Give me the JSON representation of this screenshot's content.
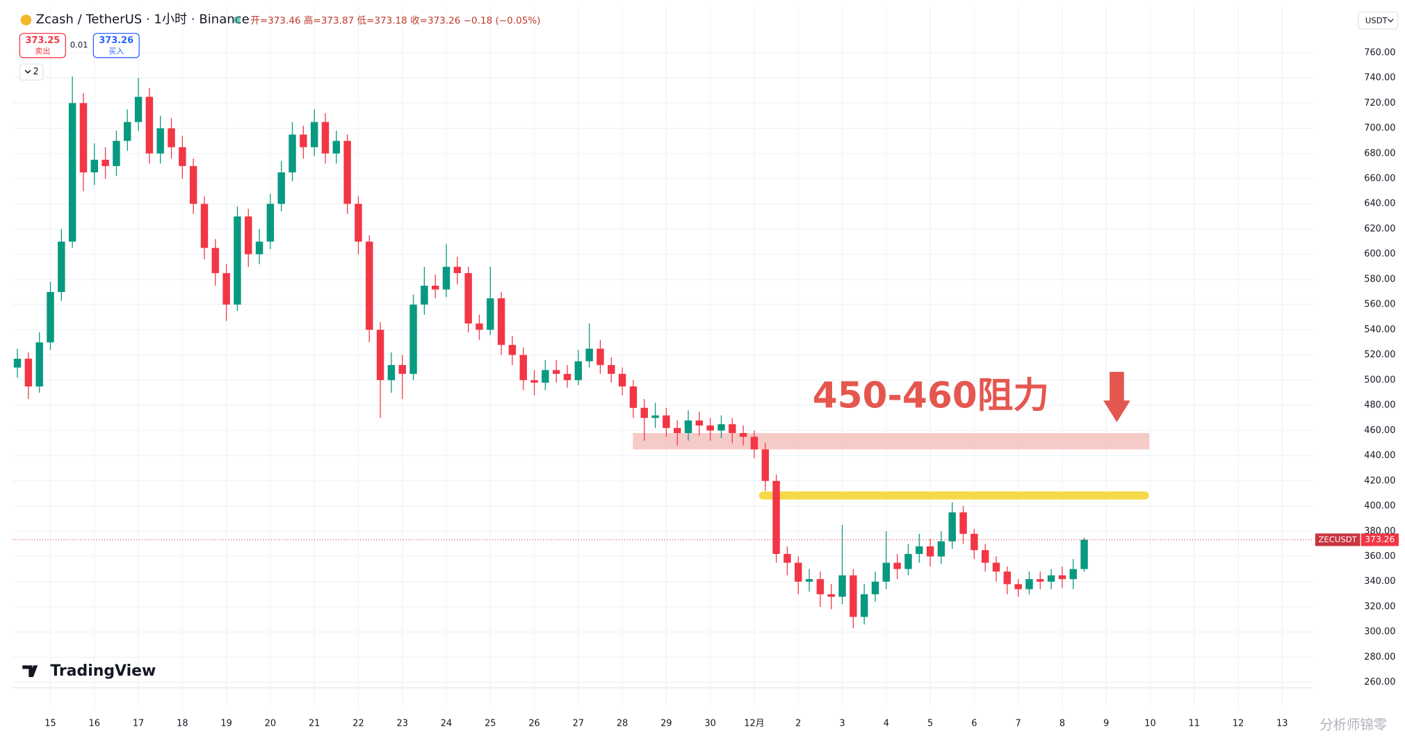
{
  "chart_data": {
    "type": "candlestick",
    "title": "Zcash / TetherUS · 1小时 · Binance",
    "ohlc_legend": "开=373.46 高=373.87 低=373.18 收=373.26 −0.18 (−0.05%)",
    "currency": "USDT",
    "symbol_label": "ZECUSDT",
    "up_color": "#089981",
    "down_color": "#f23645",
    "grid": true,
    "x": [
      14.25,
      14.5,
      14.75,
      15,
      15.25,
      15.5,
      15.75,
      16,
      16.25,
      16.5,
      16.75,
      17,
      17.25,
      17.5,
      17.75,
      18,
      18.25,
      18.5,
      18.75,
      19,
      19.25,
      19.5,
      19.75,
      20,
      20.25,
      20.5,
      20.75,
      21,
      21.25,
      21.5,
      21.75,
      22,
      22.25,
      22.5,
      22.75,
      23,
      23.25,
      23.5,
      23.75,
      24,
      24.25,
      24.5,
      24.75,
      25,
      25.25,
      25.5,
      25.75,
      26,
      26.25,
      26.5,
      26.75,
      27,
      27.25,
      27.5,
      27.75,
      28,
      28.25,
      28.5,
      28.75,
      29,
      29.25,
      29.5,
      29.75,
      30,
      30.25,
      30.5,
      30.75,
      31,
      31.25,
      31.5,
      31.75,
      32,
      32.25,
      32.5,
      32.75,
      33,
      33.25,
      33.5,
      33.75,
      34,
      34.25,
      34.5,
      34.75,
      35,
      35.25,
      35.5,
      35.75,
      36,
      36.25,
      36.5,
      36.75,
      37,
      37.25,
      37.5,
      37.75,
      38,
      38.25,
      38.5
    ],
    "open": [
      510,
      517,
      495,
      530,
      570,
      610,
      720,
      665,
      675,
      670,
      690,
      705,
      725,
      680,
      700,
      685,
      670,
      640,
      605,
      585,
      560,
      630,
      600,
      610,
      640,
      665,
      695,
      685,
      705,
      680,
      690,
      640,
      610,
      540,
      500,
      512,
      505,
      560,
      575,
      572,
      590,
      585,
      545,
      540,
      565,
      528,
      520,
      500,
      498,
      508,
      505,
      500,
      515,
      525,
      512,
      505,
      495,
      478,
      470,
      472,
      462,
      458,
      468,
      464,
      460,
      465,
      458,
      455,
      445,
      420,
      362,
      355,
      340,
      342,
      330,
      328,
      345,
      312,
      330,
      340,
      355,
      350,
      362,
      368,
      360,
      372,
      395,
      378,
      365,
      355,
      348,
      338,
      334,
      342,
      340,
      345,
      342,
      350
    ],
    "high": [
      525,
      522,
      538,
      578,
      620,
      741,
      728,
      688,
      685,
      698,
      715,
      740,
      732,
      710,
      708,
      694,
      676,
      646,
      612,
      592,
      638,
      636,
      620,
      648,
      674,
      705,
      702,
      715,
      712,
      698,
      695,
      646,
      615,
      546,
      522,
      520,
      568,
      590,
      584,
      608,
      598,
      590,
      552,
      590,
      570,
      535,
      526,
      508,
      516,
      516,
      512,
      524,
      545,
      532,
      518,
      510,
      500,
      485,
      482,
      478,
      468,
      476,
      475,
      470,
      472,
      470,
      464,
      460,
      450,
      425,
      368,
      360,
      350,
      348,
      338,
      385,
      350,
      338,
      348,
      380,
      362,
      370,
      378,
      374,
      380,
      403,
      400,
      382,
      370,
      360,
      352,
      342,
      348,
      348,
      350,
      352,
      358,
      375
    ],
    "low": [
      502,
      485,
      490,
      524,
      563,
      605,
      650,
      655,
      660,
      662,
      682,
      698,
      672,
      672,
      676,
      660,
      632,
      596,
      575,
      547,
      555,
      590,
      592,
      604,
      634,
      658,
      676,
      678,
      672,
      672,
      632,
      600,
      530,
      470,
      490,
      485,
      500,
      552,
      565,
      566,
      576,
      538,
      532,
      536,
      520,
      512,
      492,
      488,
      492,
      498,
      494,
      496,
      510,
      505,
      498,
      488,
      470,
      452,
      462,
      455,
      448,
      452,
      456,
      452,
      454,
      450,
      448,
      438,
      412,
      355,
      345,
      330,
      332,
      320,
      318,
      322,
      303,
      306,
      324,
      334,
      342,
      345,
      355,
      352,
      354,
      366,
      370,
      358,
      348,
      340,
      330,
      328,
      330,
      334,
      334,
      335,
      334,
      348
    ],
    "close": [
      517,
      495,
      530,
      570,
      610,
      720,
      665,
      675,
      670,
      690,
      705,
      725,
      680,
      700,
      685,
      670,
      640,
      605,
      585,
      560,
      630,
      600,
      610,
      640,
      665,
      695,
      685,
      705,
      680,
      690,
      640,
      610,
      540,
      500,
      512,
      505,
      560,
      575,
      572,
      590,
      585,
      545,
      540,
      565,
      528,
      520,
      500,
      498,
      508,
      505,
      500,
      515,
      525,
      512,
      505,
      495,
      478,
      470,
      472,
      462,
      458,
      468,
      464,
      460,
      465,
      458,
      455,
      445,
      420,
      362,
      355,
      340,
      342,
      330,
      328,
      345,
      312,
      330,
      340,
      355,
      350,
      362,
      368,
      360,
      372,
      395,
      378,
      365,
      355,
      348,
      338,
      334,
      342,
      340,
      345,
      342,
      350,
      373.26
    ],
    "xlim": [
      14.14,
      43.69
    ],
    "ylim": [
      240,
      796
    ],
    "xticks": [
      15,
      16,
      17,
      18,
      19,
      20,
      21,
      22,
      23,
      24,
      25,
      26,
      27,
      28,
      29,
      30,
      {
        "value": 31,
        "label": "12月"
      },
      {
        "value": 32,
        "label": "2"
      },
      {
        "value": 33,
        "label": "3"
      },
      {
        "value": 34,
        "label": "4"
      },
      {
        "value": 35,
        "label": "5"
      },
      {
        "value": 36,
        "label": "6"
      },
      {
        "value": 37,
        "label": "7"
      },
      {
        "value": 38,
        "label": "8"
      },
      {
        "value": 39,
        "label": "9"
      },
      {
        "value": 40,
        "label": "10"
      },
      {
        "value": 41,
        "label": "11"
      },
      {
        "value": 42,
        "label": "12"
      },
      {
        "value": 43,
        "label": "13"
      }
    ],
    "yticks": [
      {
        "value": 260,
        "label": "260.00"
      },
      {
        "value": 280,
        "label": "280.00"
      },
      {
        "value": 300,
        "label": "300.00"
      },
      {
        "value": 320,
        "label": "320.00"
      },
      {
        "value": 340,
        "label": "340.00"
      },
      {
        "value": 360,
        "label": "360.00"
      },
      {
        "value": 380,
        "label": "380.00"
      },
      {
        "value": 400,
        "label": "400.00"
      },
      {
        "value": 420,
        "label": "420.00"
      },
      {
        "value": 440,
        "label": "440.00"
      },
      {
        "value": 460,
        "label": "460.00"
      },
      {
        "value": 480,
        "label": "480.00"
      },
      {
        "value": 500,
        "label": "500.00"
      },
      {
        "value": 520,
        "label": "520.00"
      },
      {
        "value": 540,
        "label": "540.00"
      },
      {
        "value": 560,
        "label": "560.00"
      },
      {
        "value": 580,
        "label": "580.00"
      },
      {
        "value": 600,
        "label": "600.00"
      },
      {
        "value": 620,
        "label": "620.00"
      },
      {
        "value": 640,
        "label": "640.00"
      },
      {
        "value": 660,
        "label": "660.00"
      },
      {
        "value": 680,
        "label": "680.00"
      },
      {
        "value": 700,
        "label": "700.00"
      },
      {
        "value": 720,
        "label": "720.00"
      },
      {
        "value": 740,
        "label": "740.00"
      },
      {
        "value": 760,
        "label": "760.00"
      }
    ],
    "zone": {
      "from": 445,
      "to": 458,
      "x": [
        28.24,
        39.98
      ],
      "color": "#f5c4c1"
    },
    "level_line": {
      "value": 408.4,
      "x": [
        31.2,
        39.88
      ],
      "color": "#f5d94a"
    },
    "annotation": {
      "text": "450-460阻力",
      "color": "#e4574f"
    }
  },
  "ui": {
    "sell_price": "373.25",
    "sell_label": "卖出",
    "quantity": "0.01",
    "buy_price": "373.26",
    "buy_label": "买入",
    "indicator_count": "2",
    "watermark": "TradingView",
    "credit": "分析师锦零"
  }
}
